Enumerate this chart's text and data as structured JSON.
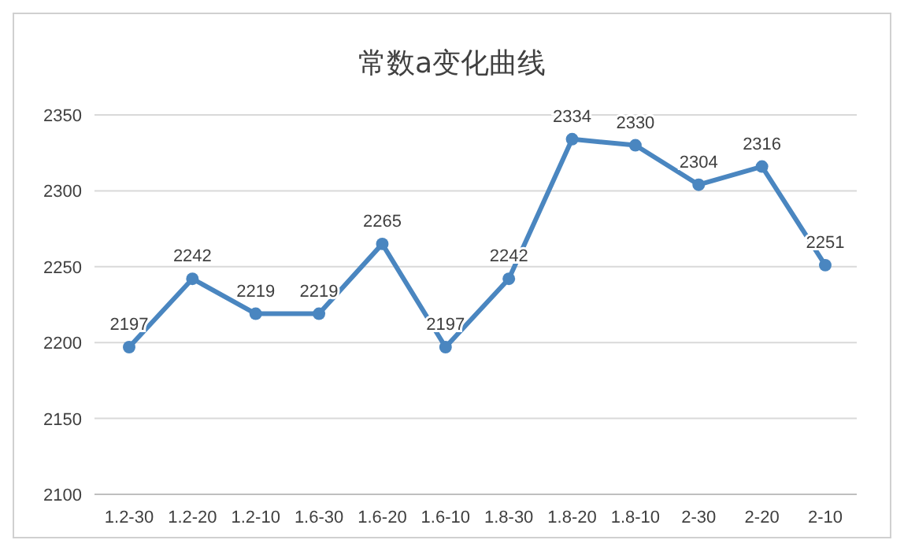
{
  "chart_data": {
    "type": "line",
    "title": "常数a变化曲线",
    "categories": [
      "1.2-30",
      "1.2-20",
      "1.2-10",
      "1.6-30",
      "1.6-20",
      "1.6-10",
      "1.8-30",
      "1.8-20",
      "1.8-10",
      "2-30",
      "2-20",
      "2-10"
    ],
    "series": [
      {
        "color": "#4a86c0",
        "values": [
          2197,
          2242,
          2219,
          2219,
          2265,
          2197,
          2242,
          2334,
          2330,
          2304,
          2316,
          2251
        ]
      }
    ],
    "ylim": [
      2100,
      2350
    ],
    "yticks": [
      2100,
      2150,
      2200,
      2250,
      2300,
      2350
    ],
    "grid": "y",
    "marker": "circle",
    "data_labels": true
  }
}
